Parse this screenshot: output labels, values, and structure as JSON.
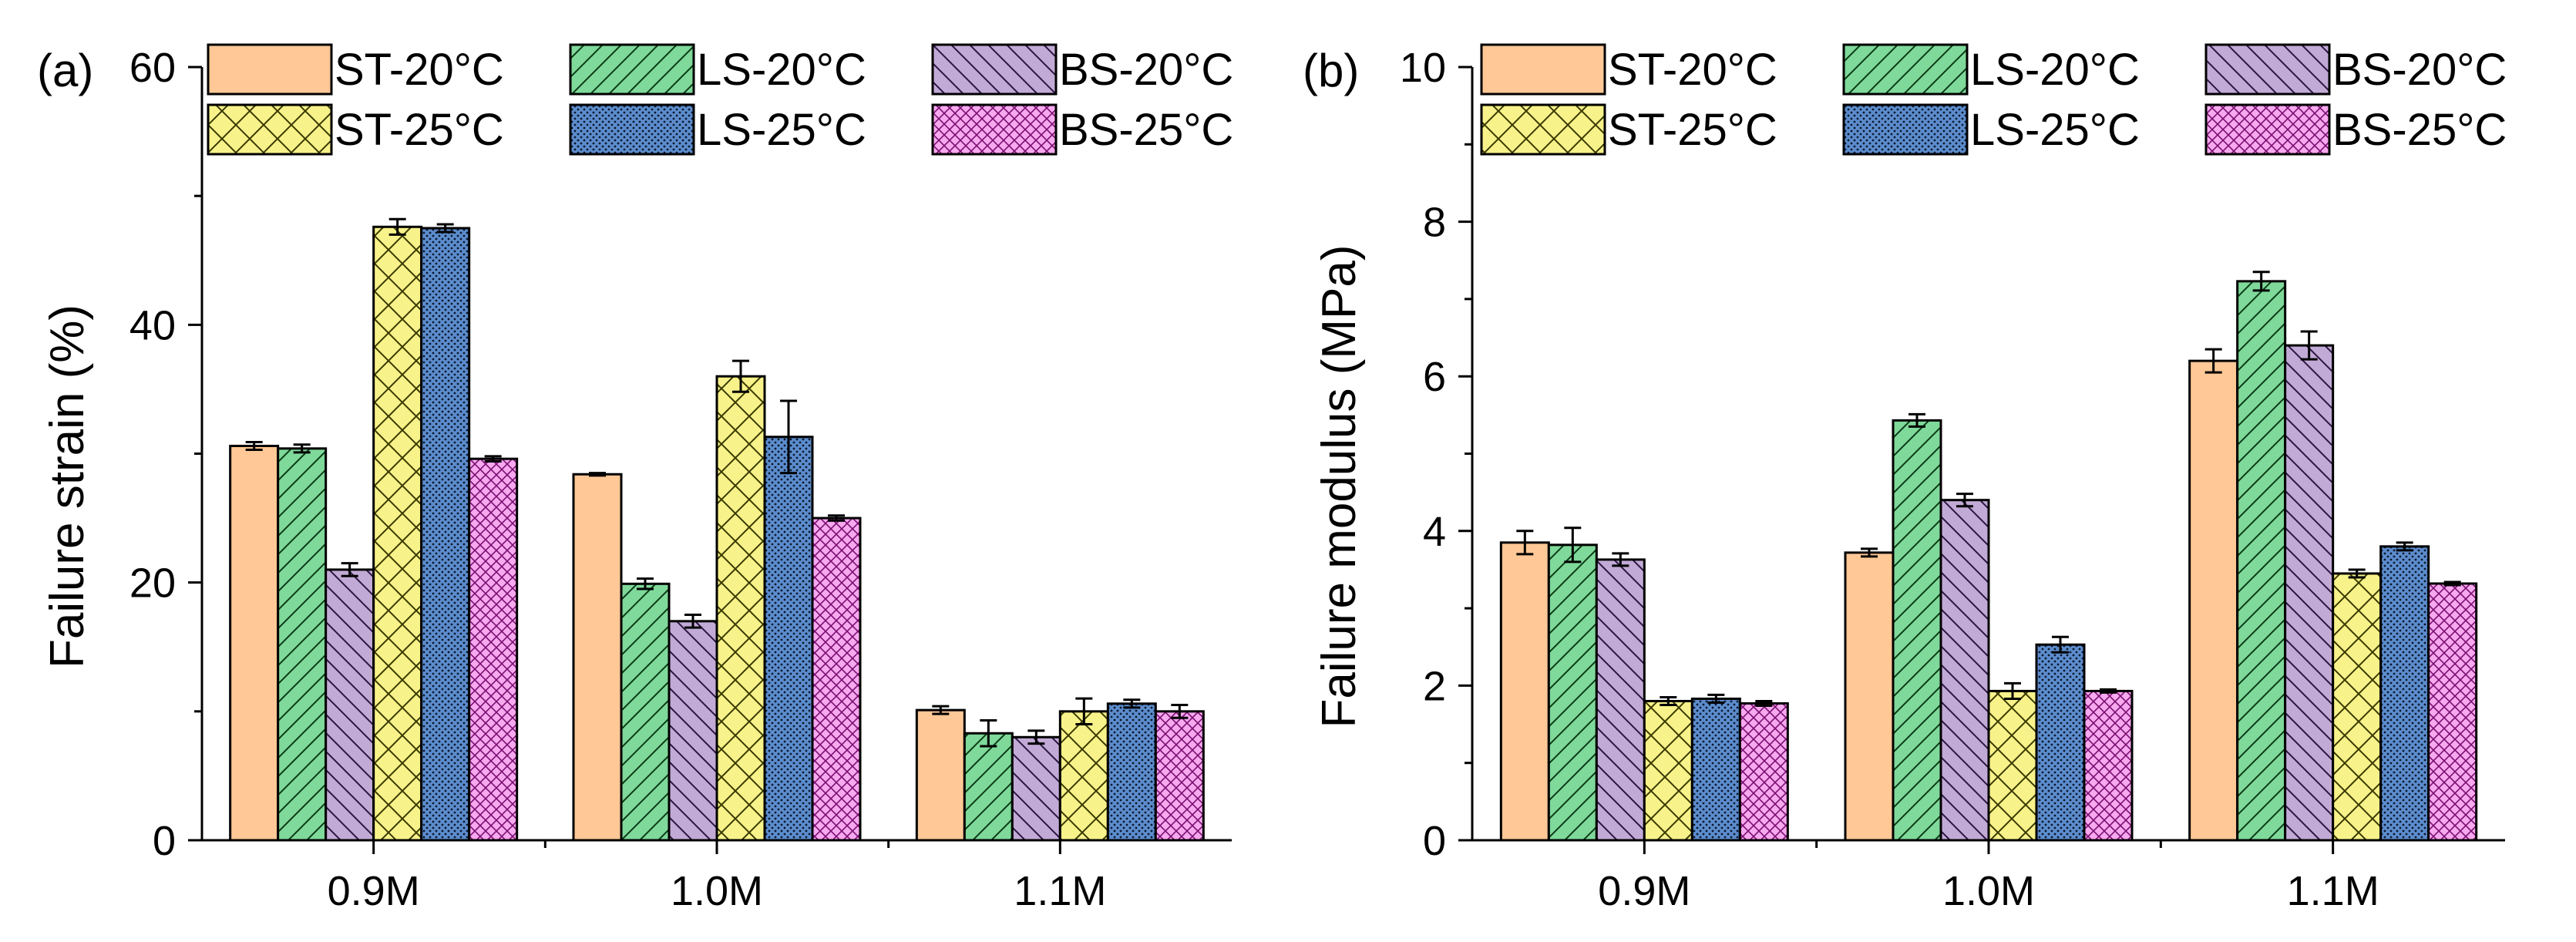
{
  "styles": {
    "ST-20": {
      "fill": "#ffc896",
      "pattern": "none",
      "pcolor": "#000000"
    },
    "LS-20": {
      "fill": "#7fd99a",
      "pattern": "diag-up",
      "pcolor": "#0b3b16"
    },
    "BS-20": {
      "fill": "#c2aad6",
      "pattern": "diag-down",
      "pcolor": "#2a1640"
    },
    "ST-25": {
      "fill": "#f8f28a",
      "pattern": "crosshatch",
      "pcolor": "#3a3a00"
    },
    "LS-25": {
      "fill": "#5c8ccc",
      "pattern": "dots",
      "pcolor": "#0a1830"
    },
    "BS-25": {
      "fill": "#f7a8ef",
      "pattern": "diag-cross",
      "pcolor": "#7a0f70"
    }
  },
  "chart_data": [
    {
      "type": "bar",
      "panel_label": "(a)",
      "ylabel": "Failure strain (%)",
      "ylim": [
        0,
        60
      ],
      "yticks": [
        "0",
        "20",
        "40",
        "60"
      ],
      "categories": [
        "0.9M",
        "1.0M",
        "1.1M"
      ],
      "legend": [
        "ST-20°C",
        "LS-20°C",
        "BS-20°C",
        "ST-25°C",
        "LS-25°C",
        "BS-25°C"
      ],
      "legend_location": "top",
      "series": [
        {
          "name": "ST-20°C",
          "style": "ST-20",
          "values": [
            30.6,
            28.4,
            10.1
          ],
          "errors": [
            0.3,
            0.1,
            0.3
          ]
        },
        {
          "name": "LS-20°C",
          "style": "LS-20",
          "values": [
            30.4,
            19.9,
            8.3
          ],
          "errors": [
            0.3,
            0.4,
            1.0
          ]
        },
        {
          "name": "BS-20°C",
          "style": "BS-20",
          "values": [
            21.0,
            17.0,
            8.0
          ],
          "errors": [
            0.5,
            0.5,
            0.5
          ]
        },
        {
          "name": "ST-25°C",
          "style": "ST-25",
          "values": [
            47.6,
            36.0,
            10.0
          ],
          "errors": [
            0.6,
            1.2,
            1.0
          ]
        },
        {
          "name": "LS-25°C",
          "style": "LS-25",
          "values": [
            47.5,
            31.3,
            10.6
          ],
          "errors": [
            0.3,
            2.8,
            0.3
          ]
        },
        {
          "name": "BS-25°C",
          "style": "BS-25",
          "values": [
            29.6,
            25.0,
            10.0
          ],
          "errors": [
            0.2,
            0.2,
            0.5
          ]
        }
      ]
    },
    {
      "type": "bar",
      "panel_label": "(b)",
      "ylabel": "Failure modulus (MPa)",
      "ylim": [
        0,
        10
      ],
      "yticks": [
        "0",
        "2",
        "4",
        "6",
        "8",
        "10"
      ],
      "categories": [
        "0.9M",
        "1.0M",
        "1.1M"
      ],
      "legend": [
        "ST-20°C",
        "LS-20°C",
        "BS-20°C",
        "ST-25°C",
        "LS-25°C",
        "BS-25°C"
      ],
      "legend_location": "top",
      "series": [
        {
          "name": "ST-20°C",
          "style": "ST-20",
          "values": [
            3.85,
            3.72,
            6.2
          ],
          "errors": [
            0.15,
            0.05,
            0.15
          ]
        },
        {
          "name": "LS-20°C",
          "style": "LS-20",
          "values": [
            3.82,
            5.43,
            7.23
          ],
          "errors": [
            0.22,
            0.08,
            0.12
          ]
        },
        {
          "name": "BS-20°C",
          "style": "BS-20",
          "values": [
            3.63,
            4.4,
            6.4
          ],
          "errors": [
            0.08,
            0.08,
            0.18
          ]
        },
        {
          "name": "ST-25°C",
          "style": "ST-25",
          "values": [
            1.8,
            1.93,
            3.45
          ],
          "errors": [
            0.05,
            0.1,
            0.05
          ]
        },
        {
          "name": "LS-25°C",
          "style": "LS-25",
          "values": [
            1.83,
            2.53,
            3.8
          ],
          "errors": [
            0.05,
            0.1,
            0.05
          ]
        },
        {
          "name": "BS-25°C",
          "style": "BS-25",
          "values": [
            1.77,
            1.93,
            3.32
          ],
          "errors": [
            0.03,
            0.02,
            0.02
          ]
        }
      ]
    }
  ]
}
